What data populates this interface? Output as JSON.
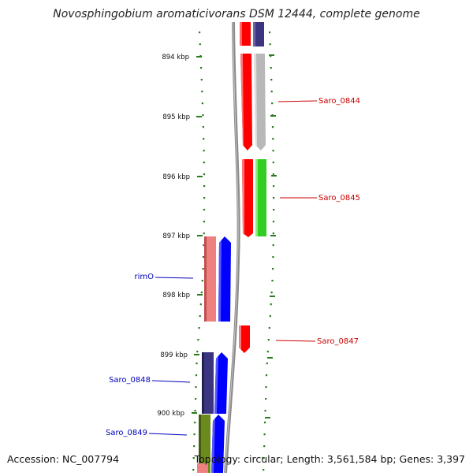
{
  "title": "Novosphingobium aromaticivorans DSM 12444, complete genome",
  "accession": "Accession: NC_007794",
  "summary": "Topology: circular; Length: 3,561,584 bp; Genes: 3,397",
  "kbp_ticks": [
    "894 kbp",
    "895 kbp",
    "896 kbp",
    "897 kbp",
    "898 kbp",
    "899 kbp",
    "900 kbp"
  ],
  "gene_labels": {
    "saro_0844": "Saro_0844",
    "saro_0845": "Saro_0845",
    "saro_0847": "Saro_0847",
    "rimO": "rimO",
    "saro_0848": "Saro_0848",
    "saro_0849": "Saro_0849"
  },
  "colors": {
    "tick": "#2a7a1e",
    "backbone": "#8a8a8a",
    "forward_label": "#cc0000",
    "reverse_label": "#0000bb",
    "red": "#ff0000",
    "blue": "#0000ff",
    "navy": "#3b3580",
    "pink": "#ee8080",
    "gray": "#b8b8b8",
    "green": "#33cc22",
    "olive": "#6b8a1e"
  }
}
